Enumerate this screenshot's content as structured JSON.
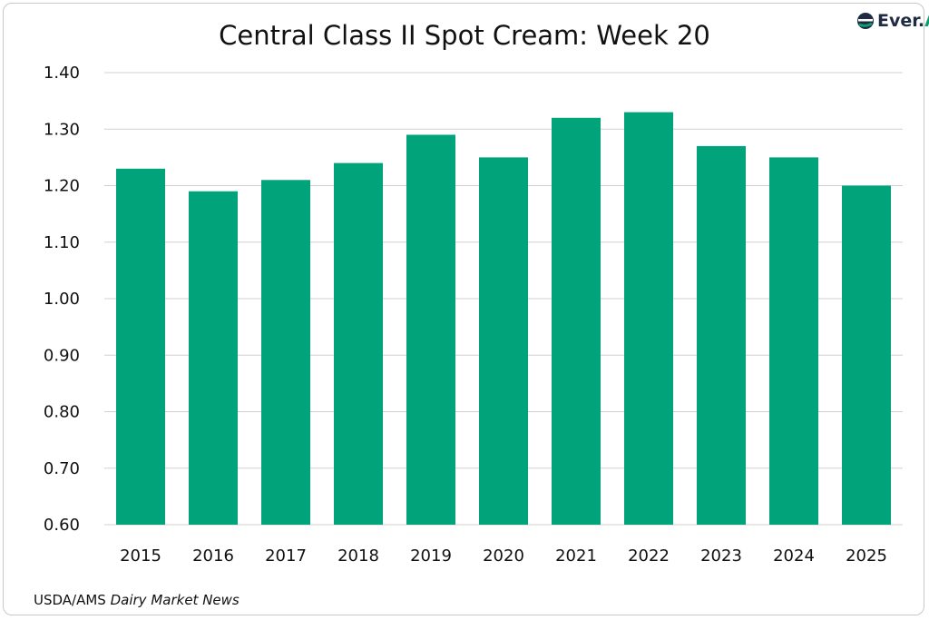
{
  "chart_data": {
    "type": "bar",
    "title": "Central Class II Spot Cream: Week 20",
    "categories": [
      "2015",
      "2016",
      "2017",
      "2018",
      "2019",
      "2020",
      "2021",
      "2022",
      "2023",
      "2024",
      "2025"
    ],
    "values": [
      1.23,
      1.19,
      1.21,
      1.24,
      1.29,
      1.25,
      1.32,
      1.33,
      1.27,
      1.25,
      1.2
    ],
    "xlabel": "",
    "ylabel": "",
    "ylim": [
      0.6,
      1.4
    ],
    "yticks": [
      "0.60",
      "0.70",
      "0.80",
      "0.90",
      "1.00",
      "1.10",
      "1.20",
      "1.30",
      "1.40"
    ],
    "grid": true,
    "bar_color": "#00A37A"
  },
  "logo": {
    "text_main": "Ever.",
    "text_accent": "Ag"
  },
  "source": {
    "prefix": "USDA/AMS ",
    "italic": "Dairy Market News"
  }
}
